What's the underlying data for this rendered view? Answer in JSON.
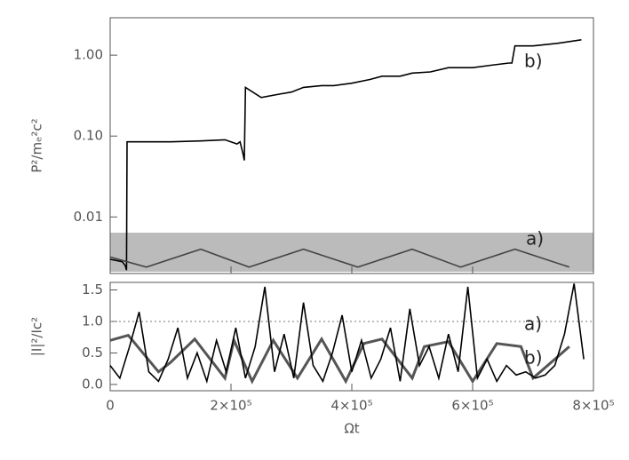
{
  "chart_data": [
    {
      "type": "line",
      "ylabel": "P²/mₑ²c²",
      "ylog": true,
      "xlim": [
        0,
        800000
      ],
      "ylim": [
        0.002,
        2.9
      ],
      "yticks": [
        0.01,
        {
          "value": 0.1,
          "label": "0.10"
        },
        {
          "value": 1,
          "label": "1.00"
        }
      ],
      "series": [
        {
          "name": "b)",
          "color": "#000000",
          "x": [
            0,
            20000,
            25000,
            27000,
            28000,
            60000,
            100000,
            150000,
            190000,
            200000,
            210000,
            215000,
            220000,
            222000,
            224000,
            250000,
            280000,
            300000,
            320000,
            350000,
            370000,
            400000,
            430000,
            450000,
            480000,
            500000,
            530000,
            560000,
            600000,
            630000,
            660000,
            665000,
            670000,
            700000,
            740000,
            780000
          ],
          "values": [
            0.003,
            0.0028,
            0.0025,
            0.0022,
            0.085,
            0.085,
            0.085,
            0.087,
            0.09,
            0.085,
            0.08,
            0.085,
            0.06,
            0.05,
            0.4,
            0.3,
            0.33,
            0.35,
            0.4,
            0.42,
            0.42,
            0.45,
            0.5,
            0.55,
            0.55,
            0.6,
            0.62,
            0.7,
            0.7,
            0.75,
            0.8,
            0.8,
            1.3,
            1.3,
            1.4,
            1.55
          ]
        },
        {
          "name": "a)",
          "color": "#444444",
          "x": [
            0,
            60000,
            150000,
            230000,
            320000,
            410000,
            500000,
            580000,
            670000,
            760000
          ],
          "values": [
            0.0032,
            0.0024,
            0.004,
            0.0024,
            0.004,
            0.0024,
            0.004,
            0.0024,
            0.004,
            0.0024
          ]
        }
      ]
    },
    {
      "type": "line",
      "ylabel": "|I|²/Ic²",
      "xlabel": "Ωt",
      "reference_y": 1,
      "xlim": [
        0,
        800000
      ],
      "ylim": [
        -0.1,
        1.62
      ],
      "xticks": [
        0,
        {
          "value": 200000,
          "label": "2×10⁵"
        },
        {
          "value": 400000,
          "label": "4×10⁵"
        },
        {
          "value": 600000,
          "label": "6×10⁵"
        },
        {
          "value": 800000,
          "label": "8×10⁵"
        }
      ],
      "yticks": [
        {
          "value": 0,
          "label": "0.0"
        },
        0.5,
        {
          "value": 1,
          "label": "1.0"
        },
        1.5
      ],
      "series": [
        {
          "name": "a)",
          "color": "#555555",
          "x": [
            0,
            30000,
            80000,
            100000,
            140000,
            190000,
            205000,
            235000,
            270000,
            310000,
            350000,
            390000,
            420000,
            450000,
            500000,
            520000,
            560000,
            600000,
            640000,
            680000,
            700000,
            760000
          ],
          "values": [
            0.7,
            0.78,
            0.2,
            0.35,
            0.72,
            0.1,
            0.7,
            0.05,
            0.7,
            0.1,
            0.72,
            0.05,
            0.65,
            0.72,
            0.1,
            0.6,
            0.68,
            0.05,
            0.65,
            0.6,
            0.1,
            0.6
          ]
        },
        {
          "name": "b)",
          "color": "#000000",
          "x": [
            0,
            16000,
            32000,
            48000,
            64000,
            80000,
            96000,
            112000,
            128000,
            144000,
            160000,
            176000,
            192000,
            208000,
            224000,
            240000,
            256000,
            272000,
            288000,
            304000,
            320000,
            336000,
            352000,
            368000,
            384000,
            400000,
            416000,
            432000,
            448000,
            464000,
            480000,
            496000,
            512000,
            528000,
            544000,
            560000,
            576000,
            592000,
            608000,
            624000,
            640000,
            656000,
            672000,
            688000,
            704000,
            720000,
            736000,
            752000,
            768000,
            784000
          ],
          "values": [
            0.3,
            0.1,
            0.6,
            1.15,
            0.2,
            0.05,
            0.4,
            0.9,
            0.1,
            0.5,
            0.05,
            0.7,
            0.2,
            0.9,
            0.1,
            0.6,
            1.55,
            0.2,
            0.8,
            0.1,
            1.3,
            0.3,
            0.05,
            0.5,
            1.1,
            0.2,
            0.7,
            0.1,
            0.4,
            0.9,
            0.05,
            1.2,
            0.3,
            0.6,
            0.1,
            0.8,
            0.2,
            1.55,
            0.1,
            0.4,
            0.05,
            0.3,
            0.15,
            0.2,
            0.1,
            0.15,
            0.3,
            0.8,
            1.6,
            0.4
          ]
        }
      ]
    }
  ]
}
